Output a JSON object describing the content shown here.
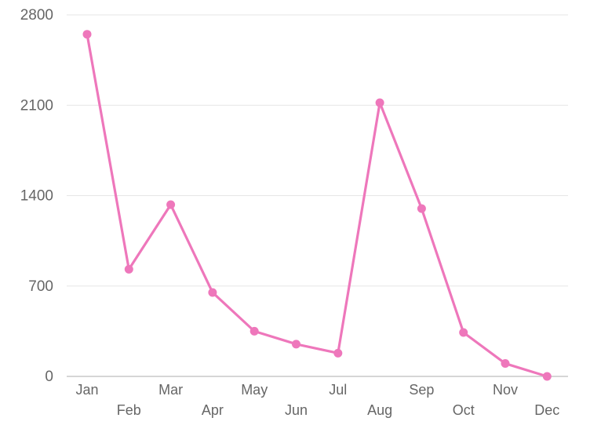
{
  "chart_data": {
    "type": "line",
    "title": "",
    "xlabel": "",
    "ylabel": "",
    "categories": [
      "Jan",
      "Feb",
      "Mar",
      "Apr",
      "May",
      "Jun",
      "Jul",
      "Aug",
      "Sep",
      "Oct",
      "Nov",
      "Dec"
    ],
    "series": [
      {
        "values": [
          2650,
          830,
          1330,
          650,
          350,
          250,
          180,
          2120,
          1300,
          340,
          100,
          0
        ]
      }
    ],
    "yticks": [
      "2800",
      "2100",
      "1400",
      "700",
      "0"
    ],
    "ylim": [
      0,
      2800
    ],
    "grid": true,
    "legend": "none",
    "colors": {
      "line": "#ee77bb",
      "grid": "#e6e6e6",
      "tick_text": "#666666"
    }
  }
}
